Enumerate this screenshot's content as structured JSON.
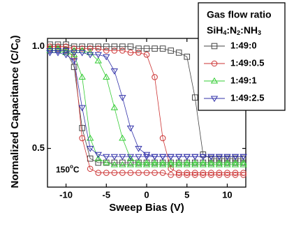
{
  "chart_data": {
    "type": "line",
    "xlabel": "Sweep Bias (V)",
    "ylabel_parts": [
      "Normalized Capacitance (C/C",
      "0",
      ")"
    ],
    "annotation_parts": [
      "150",
      "o",
      "C"
    ],
    "legend_title": "Gas flow ratio",
    "legend_subtitle_parts": [
      "SiH",
      "4",
      ":N",
      "2",
      ":NH",
      "3"
    ],
    "xlim": [
      -12.3,
      12.3
    ],
    "xticks": [
      -10,
      -5,
      0,
      5,
      10
    ],
    "ylim": [
      0.31,
      1.04
    ],
    "yticks": [
      {
        "value": 0.5,
        "label": "0.5"
      },
      {
        "value": 1,
        "label": "1.0"
      }
    ],
    "x": [
      -12,
      -11,
      -10,
      -9,
      -8,
      -7,
      -6,
      -5,
      -4,
      -3,
      -2,
      -1,
      0,
      1,
      2,
      3,
      4,
      5,
      6,
      7,
      8,
      9,
      10,
      11,
      12
    ],
    "series": [
      {
        "name": "1:49:0",
        "color": "#444444",
        "marker": "square",
        "values": [
          0.99,
          0.99,
          0.98,
          0.9,
          0.6,
          0.45,
          0.43,
          0.43,
          0.43,
          0.43,
          0.43,
          0.43,
          0.43,
          0.43,
          0.43,
          0.43,
          0.43,
          0.43,
          0.43,
          0.43,
          0.43,
          0.43,
          0.43,
          0.43,
          0.43
        ],
        "values_return": [
          1.01,
          1.01,
          1.01,
          1.0,
          1.0,
          1.0,
          1.0,
          1.0,
          1.0,
          1.0,
          1.0,
          0.99,
          0.99,
          0.99,
          0.99,
          0.98,
          0.97,
          0.95,
          0.75,
          0.47,
          0.45,
          0.45,
          0.45,
          0.45,
          0.45
        ]
      },
      {
        "name": "1:49:0.5",
        "color": "#cc3333",
        "marker": "circle",
        "values": [
          0.99,
          0.99,
          0.98,
          0.95,
          0.55,
          0.4,
          0.38,
          0.38,
          0.38,
          0.38,
          0.38,
          0.38,
          0.38,
          0.38,
          0.38,
          0.37,
          0.37,
          0.37,
          0.37,
          0.37,
          0.37,
          0.37,
          0.37,
          0.37,
          0.37
        ],
        "values_return": [
          1.0,
          1.0,
          1.0,
          0.99,
          0.99,
          0.99,
          0.99,
          0.98,
          0.98,
          0.98,
          0.97,
          0.97,
          0.96,
          0.85,
          0.55,
          0.4,
          0.38,
          0.38,
          0.38,
          0.38,
          0.38,
          0.38,
          0.38,
          0.38,
          0.38
        ]
      },
      {
        "name": "1:49:1",
        "color": "#33cc33",
        "marker": "triangle",
        "values": [
          0.98,
          0.98,
          0.97,
          0.96,
          0.85,
          0.55,
          0.45,
          0.43,
          0.42,
          0.42,
          0.42,
          0.42,
          0.42,
          0.42,
          0.42,
          0.42,
          0.42,
          0.42,
          0.42,
          0.42,
          0.42,
          0.42,
          0.42,
          0.42,
          0.42
        ],
        "values_return": [
          0.99,
          0.99,
          0.98,
          0.98,
          0.98,
          0.97,
          0.93,
          0.85,
          0.7,
          0.55,
          0.45,
          0.43,
          0.43,
          0.43,
          0.43,
          0.43,
          0.43,
          0.43,
          0.43,
          0.43,
          0.43,
          0.43,
          0.43,
          0.43,
          0.43
        ]
      },
      {
        "name": "1:49:2.5",
        "color": "#3333aa",
        "marker": "triangle-down",
        "values": [
          0.97,
          0.97,
          0.96,
          0.93,
          0.7,
          0.5,
          0.47,
          0.46,
          0.46,
          0.46,
          0.46,
          0.46,
          0.46,
          0.46,
          0.46,
          0.46,
          0.46,
          0.46,
          0.46,
          0.46,
          0.46,
          0.46,
          0.46,
          0.46,
          0.46
        ],
        "values_return": [
          0.98,
          0.98,
          0.98,
          0.97,
          0.97,
          0.96,
          0.96,
          0.95,
          0.88,
          0.75,
          0.6,
          0.5,
          0.47,
          0.46,
          0.46,
          0.46,
          0.46,
          0.46,
          0.46,
          0.46,
          0.46,
          0.46,
          0.46,
          0.46,
          0.46
        ]
      }
    ]
  }
}
